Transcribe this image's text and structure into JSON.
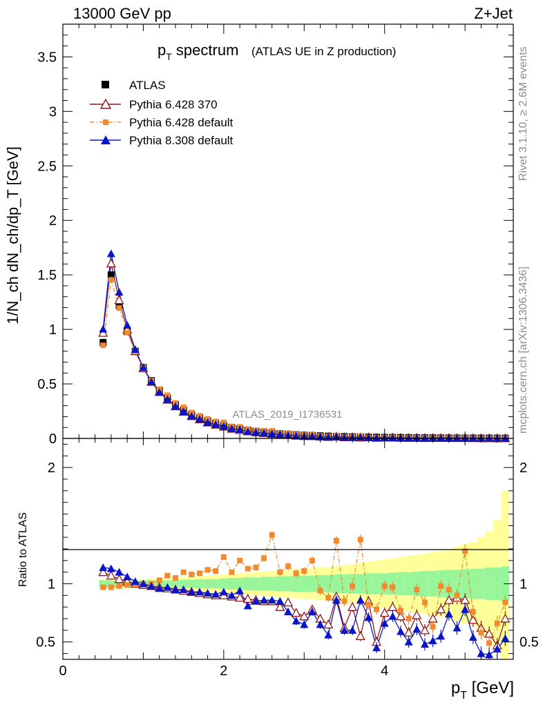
{
  "header": {
    "energy_label": "13000 GeV pp",
    "process_label": "Z+Jet",
    "rivet_label": "Rivet 3.1.10, ≥ 2.6M events",
    "mcplots_label": "mcplots.cern.ch [arXiv:1306.3436]",
    "analysis_label": "ATLAS_2019_I1736531"
  },
  "chart_data": {
    "type": "scatter",
    "title": "p_T spectrum",
    "title_main": "p",
    "title_sub": "T",
    "title_rest": " spectrum",
    "subtitle": "(ATLAS UE in Z production)",
    "xlabel": "p_T [GeV]",
    "xlabel_main": "p",
    "xlabel_sub": "T",
    "xlabel_rest": " [GeV]",
    "ylabel": "1/N_ch dN_ch/dp_T [GeV]",
    "ratio_ylabel": "Ratio to ATLAS",
    "xlim": [
      0,
      5.6
    ],
    "ylim": [
      0,
      3.8
    ],
    "ratio_ylim": [
      0.35,
      2.25
    ],
    "x_ticks": [
      "0",
      "2",
      "4"
    ],
    "y_ticks": [
      "0",
      "0.5",
      "1",
      "1.5",
      "2",
      "2.5",
      "3",
      "3.5"
    ],
    "ratio_ticks": [
      "0.5",
      "1",
      "2"
    ],
    "legend_position": "top-left",
    "x": [
      0.5,
      0.6,
      0.7,
      0.8,
      0.9,
      1.0,
      1.1,
      1.2,
      1.3,
      1.4,
      1.5,
      1.6,
      1.7,
      1.8,
      1.9,
      2.0,
      2.1,
      2.2,
      2.3,
      2.4,
      2.5,
      2.6,
      2.7,
      2.8,
      2.9,
      3.0,
      3.1,
      3.2,
      3.3,
      3.4,
      3.5,
      3.6,
      3.7,
      3.8,
      3.9,
      4.0,
      4.1,
      4.2,
      4.3,
      4.4,
      4.5,
      4.6,
      4.7,
      4.8,
      4.9,
      5.0,
      5.1,
      5.2,
      5.3,
      5.4,
      5.5
    ],
    "data": {
      "name": "ATLAS",
      "values": [
        0.88,
        1.5,
        1.22,
        0.98,
        0.8,
        0.65,
        0.53,
        0.44,
        0.37,
        0.31,
        0.26,
        0.22,
        0.19,
        0.16,
        0.14,
        0.12,
        0.1,
        0.088,
        0.076,
        0.066,
        0.058,
        0.05,
        0.044,
        0.039,
        0.034,
        0.03,
        0.027,
        0.024,
        0.021,
        0.019,
        0.017,
        0.015,
        0.014,
        0.012,
        0.011,
        0.01,
        0.009,
        0.008,
        0.0073,
        0.0066,
        0.006,
        0.0054,
        0.0049,
        0.0045,
        0.0041,
        0.0037,
        0.0034,
        0.0031,
        0.0028,
        0.0026,
        0.0024
      ],
      "band_inner": [
        0.03,
        0.03,
        0.03,
        0.03,
        0.03,
        0.03,
        0.03,
        0.03,
        0.03,
        0.03,
        0.035,
        0.035,
        0.04,
        0.04,
        0.04,
        0.045,
        0.05,
        0.05,
        0.055,
        0.055,
        0.06,
        0.06,
        0.065,
        0.065,
        0.07,
        0.07,
        0.07,
        0.075,
        0.075,
        0.08,
        0.08,
        0.085,
        0.085,
        0.09,
        0.09,
        0.09,
        0.095,
        0.1,
        0.1,
        0.105,
        0.11,
        0.11,
        0.115,
        0.12,
        0.12,
        0.125,
        0.13,
        0.13,
        0.14,
        0.14,
        0.15
      ],
      "band_outer": [
        0.04,
        0.04,
        0.04,
        0.04,
        0.04,
        0.04,
        0.045,
        0.045,
        0.05,
        0.05,
        0.055,
        0.06,
        0.065,
        0.07,
        0.075,
        0.08,
        0.085,
        0.09,
        0.095,
        0.1,
        0.105,
        0.11,
        0.115,
        0.12,
        0.125,
        0.13,
        0.135,
        0.14,
        0.145,
        0.15,
        0.16,
        0.17,
        0.18,
        0.19,
        0.2,
        0.21,
        0.22,
        0.23,
        0.24,
        0.25,
        0.26,
        0.27,
        0.28,
        0.3,
        0.32,
        0.34,
        0.36,
        0.4,
        0.45,
        0.55,
        0.8
      ]
    },
    "series": [
      {
        "name": "Pythia 6.428 370",
        "marker": "open-triangle",
        "dash": "solid",
        "color": "#8b1a1a",
        "ratio": [
          1.1,
          1.07,
          1.04,
          1.02,
          1.0,
          0.99,
          0.98,
          0.97,
          0.96,
          0.95,
          0.94,
          0.93,
          0.92,
          0.91,
          0.9,
          0.9,
          0.89,
          0.88,
          0.87,
          0.86,
          0.85,
          0.85,
          0.8,
          0.84,
          0.75,
          0.72,
          0.78,
          0.7,
          0.65,
          0.89,
          0.62,
          0.8,
          0.55,
          0.85,
          0.5,
          0.75,
          0.8,
          0.72,
          0.58,
          0.73,
          0.6,
          0.7,
          0.78,
          0.86,
          0.88,
          0.86,
          0.69,
          0.62,
          0.57,
          0.47,
          0.7
        ]
      },
      {
        "name": "Pythia 6.428 default",
        "marker": "filled-square",
        "dash": "dashdot",
        "color": "#f28a30",
        "ratio": [
          0.97,
          0.97,
          0.98,
          0.99,
          1.0,
          1.0,
          1.0,
          1.03,
          1.07,
          1.05,
          1.1,
          1.08,
          1.09,
          1.12,
          1.11,
          1.23,
          1.1,
          1.2,
          1.13,
          1.14,
          1.22,
          1.42,
          1.1,
          1.15,
          1.09,
          1.11,
          1.2,
          0.94,
          0.88,
          1.37,
          0.85,
          0.98,
          1.38,
          0.82,
          0.78,
          0.98,
          0.97,
          0.77,
          0.7,
          0.95,
          0.84,
          0.63,
          0.98,
          0.95,
          0.9,
          1.28,
          0.76,
          0.58,
          0.49,
          0.66,
          0.84
        ]
      },
      {
        "name": "Pythia 8.308 default",
        "marker": "filled-triangle",
        "dash": "solid",
        "color": "#0a14c8",
        "ratio": [
          1.14,
          1.13,
          1.1,
          1.06,
          1.02,
          1.0,
          0.98,
          0.96,
          0.97,
          0.95,
          0.95,
          0.93,
          0.93,
          0.92,
          0.91,
          0.93,
          0.9,
          0.94,
          0.81,
          0.85,
          0.86,
          0.86,
          0.85,
          0.76,
          0.68,
          0.65,
          0.76,
          0.65,
          0.56,
          0.86,
          0.6,
          0.6,
          0.86,
          0.71,
          0.45,
          0.66,
          0.72,
          0.59,
          0.5,
          0.61,
          0.48,
          0.51,
          0.55,
          0.74,
          0.62,
          0.78,
          0.54,
          0.4,
          0.39,
          0.44,
          0.53
        ]
      }
    ]
  }
}
